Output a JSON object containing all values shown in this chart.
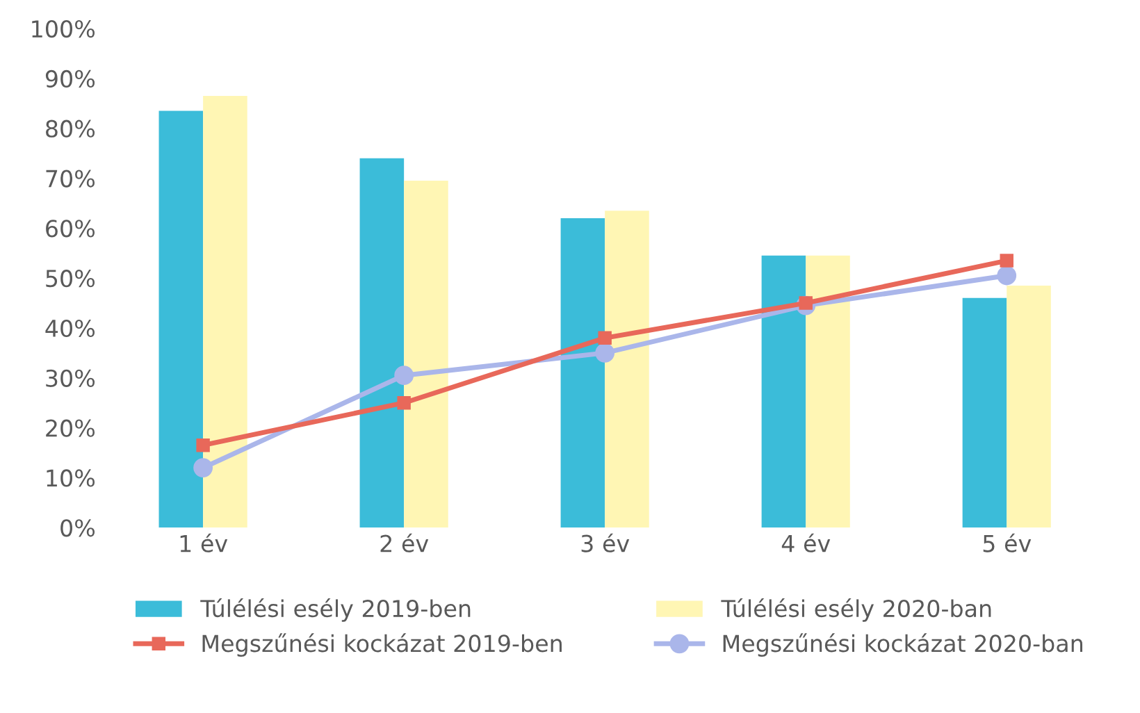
{
  "chart_data": {
    "type": "bar",
    "categories": [
      "1 év",
      "2 év",
      "3 év",
      "4 év",
      "5 év"
    ],
    "series": [
      {
        "name": "Túlélési esély 2019-ben",
        "color": "#3bbcd9",
        "values": [
          83.5,
          74,
          62,
          54.5,
          46
        ]
      },
      {
        "name": "Túlélési esély 2020-ban",
        "color": "#fff6b4",
        "values": [
          86.5,
          69.5,
          63.5,
          54.5,
          48.5
        ]
      },
      {
        "name": "Megszűnési kockázat 2019-ben",
        "type": "line",
        "color": "#e8685a",
        "marker": "square",
        "values": [
          16.5,
          25,
          38,
          45,
          53.5
        ]
      },
      {
        "name": "Megszűnési kockázat 2020-ban",
        "type": "line",
        "color": "#aab6ea",
        "marker": "circle",
        "values": [
          12,
          30.5,
          35,
          44.5,
          50.5
        ]
      }
    ],
    "ylim": [
      0,
      100
    ],
    "yticks": [
      {
        "value": 0,
        "label": "0%"
      },
      {
        "value": 10,
        "label": "10%"
      },
      {
        "value": 20,
        "label": "20%"
      },
      {
        "value": 30,
        "label": "30%"
      },
      {
        "value": 40,
        "label": "40%"
      },
      {
        "value": 50,
        "label": "50%"
      },
      {
        "value": 60,
        "label": "60%"
      },
      {
        "value": 70,
        "label": "70%"
      },
      {
        "value": 80,
        "label": "80%"
      },
      {
        "value": 90,
        "label": "90%"
      },
      {
        "value": 100,
        "label": "100%"
      }
    ],
    "legend": "bottom"
  }
}
